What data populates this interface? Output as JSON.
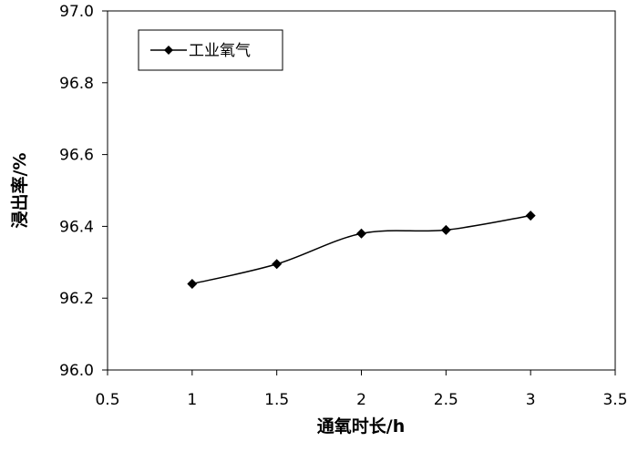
{
  "chart_data": {
    "type": "line",
    "title": "",
    "xlabel": "通氧时长/h",
    "ylabel": "浸出率/%",
    "xlim": [
      0.5,
      3.5
    ],
    "ylim": [
      96.0,
      97.0
    ],
    "x_ticks": [
      "0.5",
      "1",
      "1.5",
      "2",
      "2.5",
      "3",
      "3.5"
    ],
    "x_tick_values": [
      0.5,
      1,
      1.5,
      2,
      2.5,
      3,
      3.5
    ],
    "y_ticks": [
      "96.0",
      "96.2",
      "96.4",
      "96.6",
      "96.8",
      "97.0"
    ],
    "y_tick_values": [
      96.0,
      96.2,
      96.4,
      96.6,
      96.8,
      97.0
    ],
    "grid": false,
    "legend_position": "top-left",
    "series": [
      {
        "name": "工业氧气",
        "x": [
          1,
          1.5,
          2,
          2.5,
          3
        ],
        "values": [
          96.24,
          96.295,
          96.38,
          96.39,
          96.43
        ],
        "marker": "diamond",
        "color": "#000000"
      }
    ]
  }
}
